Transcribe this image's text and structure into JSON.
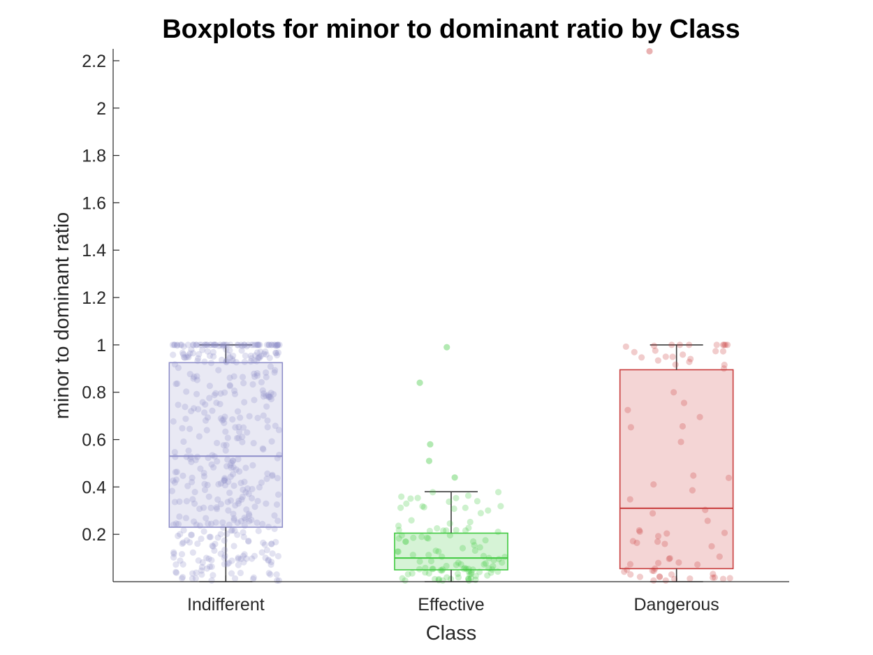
{
  "chart_data": {
    "type": "boxplot",
    "title": "Boxplots for minor to dominant ratio by Class",
    "xlabel": "Class",
    "ylabel": "minor to dominant ratio",
    "ylim": [
      0,
      2.25
    ],
    "yticks": [
      0.2,
      0.4,
      0.6,
      0.8,
      1,
      1.2,
      1.4,
      1.6,
      1.8,
      2,
      2.2
    ],
    "ytick_labels": [
      "0.2",
      "0.4",
      "0.6",
      "0.8",
      "1",
      "1.2",
      "1.4",
      "1.6",
      "1.8",
      "2",
      "2.2"
    ],
    "categories": [
      "Indifferent",
      "Effective",
      "Dangerous"
    ],
    "boxes": [
      {
        "category": "Indifferent",
        "whisker_low": 0.0,
        "q1": 0.23,
        "median": 0.53,
        "q3": 0.925,
        "whisker_high": 1.0,
        "color": "#8e8ec9",
        "fill": "#e9e9f4",
        "points": 460,
        "seed": 11
      },
      {
        "category": "Effective",
        "whisker_low": 0.0,
        "q1": 0.05,
        "median": 0.1,
        "q3": 0.205,
        "whisker_high": 0.38,
        "color": "#3ec93e",
        "fill": "#d6f3d6",
        "points": 110,
        "seed": 23,
        "outliers": [
          0.99,
          0.84,
          0.58,
          0.51,
          0.44
        ]
      },
      {
        "category": "Dangerous",
        "whisker_low": 0.0,
        "q1": 0.055,
        "median": 0.31,
        "q3": 0.895,
        "whisker_high": 1.0,
        "color": "#c83b3b",
        "fill": "#f4d5d5",
        "points": 75,
        "seed": 37,
        "outliers": [
          2.24
        ]
      }
    ]
  }
}
